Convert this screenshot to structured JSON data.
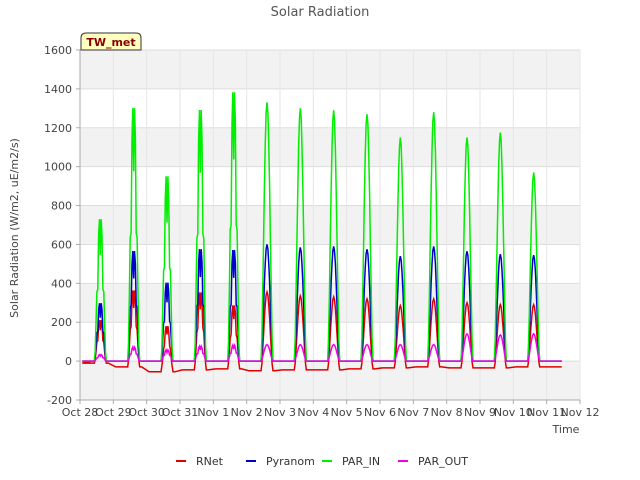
{
  "chart_data": {
    "type": "line",
    "title": "Solar Radiation",
    "xlabel": "Time",
    "ylabel": "Solar Radiation (W/m2, uE/m2/s)",
    "badge": "TW_met",
    "ylim": [
      -200,
      1600
    ],
    "yticks": [
      -200,
      0,
      200,
      400,
      600,
      800,
      1000,
      1200,
      1400,
      1600
    ],
    "xlim": [
      0,
      15
    ],
    "xticks": [
      {
        "x": 0,
        "label": "Oct 28"
      },
      {
        "x": 1,
        "label": "Oct 29"
      },
      {
        "x": 2,
        "label": "Oct 30"
      },
      {
        "x": 3,
        "label": "Oct 31"
      },
      {
        "x": 4,
        "label": "Nov 1"
      },
      {
        "x": 5,
        "label": "Nov 2"
      },
      {
        "x": 6,
        "label": "Nov 3"
      },
      {
        "x": 7,
        "label": "Nov 4"
      },
      {
        "x": 8,
        "label": "Nov 5"
      },
      {
        "x": 9,
        "label": "Nov 6"
      },
      {
        "x": 10,
        "label": "Nov 7"
      },
      {
        "x": 11,
        "label": "Nov 8"
      },
      {
        "x": 12,
        "label": "Nov 9"
      },
      {
        "x": 13,
        "label": "Nov 10"
      },
      {
        "x": 14,
        "label": "Nov 11"
      },
      {
        "x": 15,
        "label": "Nov 12"
      }
    ],
    "grid": true,
    "legend_position": "bottom",
    "series": [
      {
        "name": "RNet",
        "color": "#dd0000",
        "peaks": [
          220,
          380,
          190,
          370,
          300,
          355,
          335,
          330,
          320,
          285,
          320,
          300,
          290,
          290
        ],
        "night": [
          -10,
          -30,
          -55,
          -45,
          -40,
          -50,
          -45,
          -45,
          -40,
          -35,
          -30,
          -35,
          -35,
          -30
        ]
      },
      {
        "name": "Pyranom",
        "color": "#0000cc",
        "peaks": [
          310,
          590,
          420,
          600,
          595,
          600,
          585,
          590,
          575,
          540,
          590,
          565,
          550,
          545
        ],
        "night": [
          0,
          0,
          0,
          0,
          0,
          0,
          0,
          0,
          0,
          0,
          0,
          0,
          0,
          0
        ]
      },
      {
        "name": "PAR_IN",
        "color": "#00ee00",
        "peaks": [
          760,
          1355,
          990,
          1345,
          1440,
          1330,
          1300,
          1290,
          1270,
          1150,
          1280,
          1150,
          1175,
          970
        ],
        "night": [
          0,
          0,
          0,
          0,
          0,
          0,
          0,
          0,
          0,
          0,
          0,
          0,
          0,
          0
        ]
      },
      {
        "name": "PAR_OUT",
        "color": "#ee00ee",
        "peaks": [
          35,
          75,
          60,
          80,
          85,
          85,
          85,
          85,
          85,
          85,
          85,
          140,
          135,
          140
        ],
        "night": [
          0,
          0,
          0,
          0,
          0,
          0,
          0,
          0,
          0,
          0,
          0,
          0,
          0,
          0
        ]
      }
    ]
  }
}
